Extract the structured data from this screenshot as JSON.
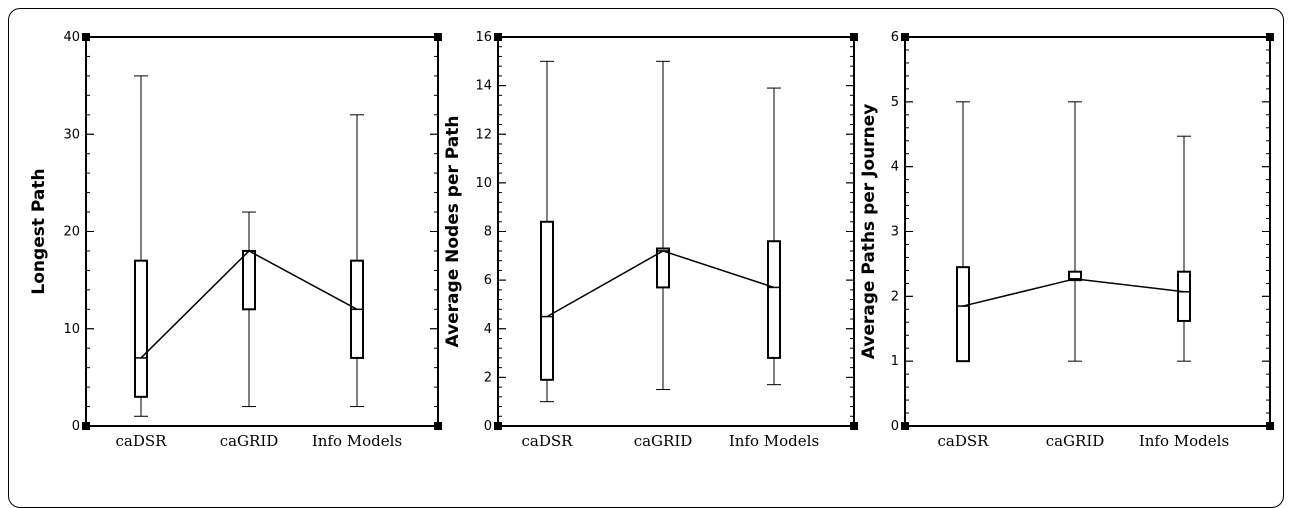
{
  "chart_data": [
    {
      "type": "box",
      "ylabel": "Longest Path",
      "categories": [
        "caDSR",
        "caGRID",
        "Info Models"
      ],
      "ylim": [
        0,
        40
      ],
      "yticks": [
        0,
        10,
        20,
        30,
        40
      ],
      "boxes": [
        {
          "category": "caDSR",
          "min": 1,
          "q1": 3,
          "median": 7,
          "q3": 17,
          "max": 36
        },
        {
          "category": "caGRID",
          "min": 2,
          "q1": 12,
          "median": 18,
          "q3": 18,
          "max": 22
        },
        {
          "category": "Info Models",
          "min": 2,
          "q1": 7,
          "median": 12,
          "q3": 17,
          "max": 32
        }
      ],
      "line": [
        7,
        18,
        12
      ]
    },
    {
      "type": "box",
      "ylabel": "Average Nodes per Path",
      "categories": [
        "caDSR",
        "caGRID",
        "Info Models"
      ],
      "ylim": [
        0,
        16
      ],
      "yticks": [
        0,
        2,
        4,
        6,
        8,
        10,
        12,
        14,
        16
      ],
      "boxes": [
        {
          "category": "caDSR",
          "min": 1,
          "q1": 1.9,
          "median": 4.5,
          "q3": 8.4,
          "max": 15
        },
        {
          "category": "caGRID",
          "min": 1.5,
          "q1": 5.7,
          "median": 7.2,
          "q3": 7.3,
          "max": 15
        },
        {
          "category": "Info Models",
          "min": 1.7,
          "q1": 2.8,
          "median": 5.7,
          "q3": 7.6,
          "max": 13.9
        }
      ],
      "line": [
        4.5,
        7.2,
        5.7
      ]
    },
    {
      "type": "box",
      "ylabel": "Average Paths per Journey",
      "categories": [
        "caDSR",
        "caGRID",
        "Info Models"
      ],
      "ylim": [
        0,
        6
      ],
      "yticks": [
        0,
        1,
        2,
        3,
        4,
        5,
        6
      ],
      "boxes": [
        {
          "category": "caDSR",
          "min": 1,
          "q1": 1,
          "median": 1.85,
          "q3": 2.45,
          "max": 5
        },
        {
          "category": "caGRID",
          "min": 1,
          "q1": 2.25,
          "median": 2.27,
          "q3": 2.38,
          "max": 5
        },
        {
          "category": "Info Models",
          "min": 1,
          "q1": 1.62,
          "median": 2.07,
          "q3": 2.38,
          "max": 4.47
        }
      ],
      "line": [
        1.85,
        2.27,
        2.07
      ]
    }
  ]
}
